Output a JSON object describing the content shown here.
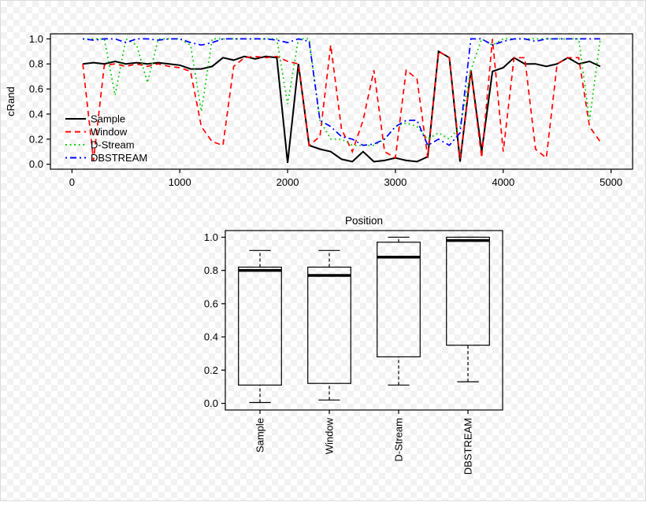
{
  "figure": {
    "border_color": "#dcdcdc",
    "background_checker_light": "#ffffff",
    "background_checker_dark": "#f2f2f2"
  },
  "chart_data": [
    {
      "type": "line",
      "title": "",
      "xlabel": "",
      "ylabel": "cRand",
      "xlim": [
        0,
        5000
      ],
      "ylim": [
        0.0,
        1.0
      ],
      "grid": false,
      "legend_position": "left-middle",
      "x_ticks": [
        "0",
        "1000",
        "2000",
        "3000",
        "4000",
        "5000"
      ],
      "y_ticks": [
        "0.0",
        "0.2",
        "0.4",
        "0.6",
        "0.8",
        "1.0"
      ],
      "x": [
        100,
        200,
        300,
        400,
        500,
        600,
        700,
        800,
        900,
        1000,
        1100,
        1200,
        1300,
        1400,
        1500,
        1600,
        1700,
        1800,
        1900,
        2000,
        2100,
        2200,
        2300,
        2400,
        2500,
        2600,
        2700,
        2800,
        2900,
        3000,
        3100,
        3200,
        3300,
        3400,
        3500,
        3600,
        3700,
        3800,
        3900,
        4000,
        4100,
        4200,
        4300,
        4400,
        4500,
        4600,
        4700,
        4800,
        4900
      ],
      "series": [
        {
          "name": "Sample",
          "color": "#000000",
          "linetype": "solid",
          "values": [
            0.8,
            0.81,
            0.8,
            0.82,
            0.8,
            0.81,
            0.8,
            0.81,
            0.8,
            0.79,
            0.76,
            0.76,
            0.78,
            0.85,
            0.83,
            0.86,
            0.84,
            0.86,
            0.85,
            0.01,
            0.8,
            0.15,
            0.12,
            0.1,
            0.04,
            0.02,
            0.1,
            0.02,
            0.03,
            0.05,
            0.03,
            0.02,
            0.06,
            0.9,
            0.85,
            0.02,
            0.75,
            0.1,
            0.74,
            0.77,
            0.85,
            0.8,
            0.8,
            0.78,
            0.8,
            0.85,
            0.8,
            0.82,
            0.78
          ]
        },
        {
          "name": "Window",
          "color": "#ff0000",
          "linetype": "dashed",
          "values": [
            0.8,
            0.03,
            0.79,
            0.8,
            0.78,
            0.8,
            0.78,
            0.8,
            0.78,
            0.77,
            0.74,
            0.3,
            0.18,
            0.15,
            0.78,
            0.85,
            0.86,
            0.85,
            0.86,
            0.82,
            0.8,
            0.15,
            0.22,
            0.95,
            0.28,
            0.1,
            0.35,
            0.75,
            0.1,
            0.05,
            0.75,
            0.68,
            0.05,
            0.9,
            0.85,
            0.04,
            0.75,
            0.05,
            1.0,
            0.1,
            0.85,
            0.85,
            0.12,
            0.05,
            0.8,
            0.85,
            0.85,
            0.3,
            0.18
          ]
        },
        {
          "name": "D-Stream",
          "color": "#00cd00",
          "linetype": "dotted",
          "values": [
            1.0,
            1.0,
            1.0,
            0.55,
            1.0,
            0.95,
            0.65,
            1.0,
            1.0,
            1.0,
            0.95,
            0.42,
            1.0,
            1.0,
            1.0,
            1.0,
            1.0,
            1.0,
            1.0,
            0.48,
            1.0,
            1.0,
            0.35,
            0.2,
            0.2,
            0.15,
            0.15,
            0.15,
            0.2,
            0.3,
            0.33,
            0.3,
            0.2,
            0.25,
            0.2,
            0.3,
            0.75,
            1.0,
            0.95,
            1.0,
            1.0,
            1.0,
            1.0,
            1.0,
            1.0,
            1.0,
            1.0,
            0.35,
            1.0
          ]
        },
        {
          "name": "DBSTREAM",
          "color": "#0000ff",
          "linetype": "dashdot",
          "values": [
            1.0,
            0.99,
            1.0,
            1.0,
            0.97,
            1.0,
            1.0,
            0.99,
            1.0,
            1.0,
            0.97,
            0.95,
            0.97,
            1.0,
            1.0,
            1.0,
            1.0,
            1.0,
            0.99,
            0.97,
            1.0,
            0.98,
            0.35,
            0.3,
            0.22,
            0.2,
            0.15,
            0.16,
            0.2,
            0.3,
            0.35,
            0.35,
            0.15,
            0.2,
            0.15,
            0.25,
            1.0,
            1.0,
            0.95,
            0.98,
            1.0,
            1.0,
            0.98,
            1.0,
            1.0,
            1.0,
            1.0,
            1.0,
            1.0
          ]
        }
      ]
    },
    {
      "type": "boxplot",
      "title": "Position",
      "ylim": [
        0.0,
        1.0
      ],
      "y_ticks": [
        "0.0",
        "0.2",
        "0.4",
        "0.6",
        "0.8",
        "1.0"
      ],
      "categories": [
        "Sample",
        "Window",
        "D-Stream",
        "DBSTREAM"
      ],
      "boxes": [
        {
          "whisker_low": 0.005,
          "q1": 0.11,
          "median": 0.8,
          "q3": 0.82,
          "whisker_high": 0.92
        },
        {
          "whisker_low": 0.02,
          "q1": 0.12,
          "median": 0.77,
          "q3": 0.82,
          "whisker_high": 0.92
        },
        {
          "whisker_low": 0.11,
          "q1": 0.28,
          "median": 0.88,
          "q3": 0.97,
          "whisker_high": 1.0
        },
        {
          "whisker_low": 0.13,
          "q1": 0.35,
          "median": 0.98,
          "q3": 1.0,
          "whisker_high": 1.0
        }
      ]
    }
  ]
}
